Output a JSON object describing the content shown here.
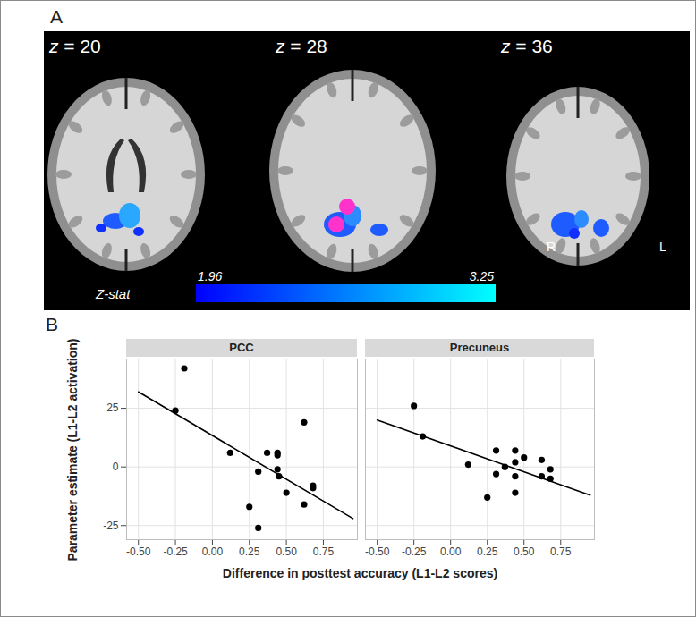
{
  "panel_a": {
    "label": "A",
    "slices": [
      "z = 20",
      "z = 28",
      "z = 36"
    ],
    "side_labels": [
      "R",
      "L"
    ],
    "colorbar": {
      "title": "Z-stat",
      "range": [
        1.96,
        3.25
      ],
      "ticks": [
        1.96,
        3.25
      ],
      "colors": [
        "#0000ff",
        "#00ffff"
      ]
    }
  },
  "chart_data": {
    "type": "scatter",
    "label": "B",
    "x_label": "Difference in posttest accuracy (L1-L2 scores)",
    "y_label": "Parameter estimate (L1-L2 activation)",
    "xlim": [
      -0.58,
      0.98
    ],
    "ylim": [
      -31,
      46
    ],
    "xticks": [
      {
        "value": -0.5,
        "label": "-0.50"
      },
      {
        "value": -0.25,
        "label": "-0.25"
      },
      {
        "value": 0,
        "label": "0.00"
      },
      {
        "value": 0.25,
        "label": "0.25"
      },
      {
        "value": 0.5,
        "label": "0.50"
      },
      {
        "value": 0.75,
        "label": "0.75"
      }
    ],
    "yticks": [
      {
        "value": -25,
        "label": "-25"
      },
      0,
      25
    ],
    "grid": true,
    "color": "#000000",
    "marker": "circle",
    "facets": [
      {
        "title": "PCC",
        "x": [
          -0.19,
          -0.25,
          0.12,
          0.37,
          0.44,
          0.44,
          0.44,
          0.45,
          0.31,
          0.5,
          0.68,
          0.68,
          0.62,
          0.25,
          0.31,
          0.62
        ],
        "y": [
          42,
          24,
          6,
          6,
          6,
          5,
          -1,
          -4,
          -2,
          -11,
          -8,
          -9,
          19,
          -17,
          -26,
          -16
        ],
        "fit": {
          "x": [
            -0.5,
            0.95
          ],
          "y": [
            32,
            -22
          ]
        }
      },
      {
        "title": "Precuneus",
        "x": [
          -0.25,
          -0.19,
          0.12,
          0.25,
          0.31,
          0.31,
          0.37,
          0.44,
          0.44,
          0.44,
          0.44,
          0.5,
          0.62,
          0.62,
          0.68,
          0.68
        ],
        "y": [
          26,
          13,
          1,
          -13,
          7,
          -3,
          0,
          7,
          2,
          -4,
          -11,
          4,
          3,
          -4,
          -1,
          -5
        ],
        "fit": {
          "x": [
            -0.5,
            0.95
          ],
          "y": [
            20,
            -12
          ]
        }
      }
    ]
  }
}
